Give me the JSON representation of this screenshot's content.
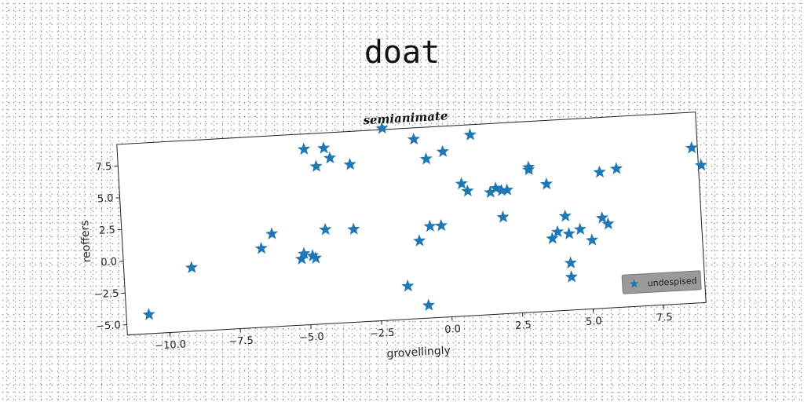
{
  "page": {
    "title": "doat"
  },
  "chart_data": {
    "type": "scatter",
    "title": "semianimate",
    "xlabel": "grovellingly",
    "ylabel": "reoffers",
    "xlim": [
      -11.5,
      9.0
    ],
    "ylim": [
      -5.8,
      9.2
    ],
    "xticks": [
      "−10.0",
      "−7.5",
      "−5.0",
      "−2.5",
      "0.0",
      "2.5",
      "5.0",
      "7.5"
    ],
    "xtick_values": [
      -10,
      -7.5,
      -5,
      -2.5,
      0,
      2.5,
      5,
      7.5
    ],
    "yticks": [
      "−5.0",
      "−2.5",
      "0.0",
      "2.5",
      "5.0",
      "7.5"
    ],
    "ytick_values": [
      -5,
      -2.5,
      0,
      2.5,
      5,
      7.5
    ],
    "grid": false,
    "legend_position": "lower-right",
    "marker_color": "#1f77b4",
    "series": [
      {
        "name": "undespised",
        "marker": "star",
        "points": [
          [
            -10.7,
            -4.3
          ],
          [
            -9.1,
            -0.8
          ],
          [
            -6.6,
            0.4
          ],
          [
            -6.2,
            1.5
          ],
          [
            -5.2,
            -0.6
          ],
          [
            -5.1,
            -0.2
          ],
          [
            -4.8,
            -0.4
          ],
          [
            -4.7,
            -0.6
          ],
          [
            -4.9,
            8.0
          ],
          [
            -4.5,
            6.6
          ],
          [
            -4.2,
            8.0
          ],
          [
            -4.0,
            7.2
          ],
          [
            -3.3,
            6.6
          ],
          [
            -4.3,
            1.6
          ],
          [
            -3.3,
            1.5
          ],
          [
            -2.1,
            9.3
          ],
          [
            -1.5,
            -3.2
          ],
          [
            -1.0,
            8.3
          ],
          [
            -1.0,
            0.3
          ],
          [
            -0.8,
            -4.8
          ],
          [
            -0.6,
            6.7
          ],
          [
            -0.6,
            1.4
          ],
          [
            -0.2,
            1.4
          ],
          [
            0.0,
            7.2
          ],
          [
            0.6,
            4.6
          ],
          [
            0.8,
            4.0
          ],
          [
            1.0,
            8.4
          ],
          [
            1.6,
            3.8
          ],
          [
            1.8,
            4.1
          ],
          [
            2.0,
            3.9
          ],
          [
            2.2,
            3.9
          ],
          [
            2.0,
            1.8
          ],
          [
            3.0,
            5.6
          ],
          [
            3.0,
            5.4
          ],
          [
            3.6,
            4.2
          ],
          [
            3.7,
            -0.1
          ],
          [
            3.9,
            0.4
          ],
          [
            4.2,
            1.6
          ],
          [
            4.3,
            0.2
          ],
          [
            4.3,
            -2.1
          ],
          [
            4.3,
            -3.2
          ],
          [
            4.7,
            0.5
          ],
          [
            5.1,
            -0.4
          ],
          [
            5.5,
            4.9
          ],
          [
            5.5,
            1.3
          ],
          [
            5.7,
            0.8
          ],
          [
            6.1,
            5.1
          ],
          [
            8.8,
            6.4
          ],
          [
            9.1,
            5.0
          ]
        ]
      }
    ]
  }
}
